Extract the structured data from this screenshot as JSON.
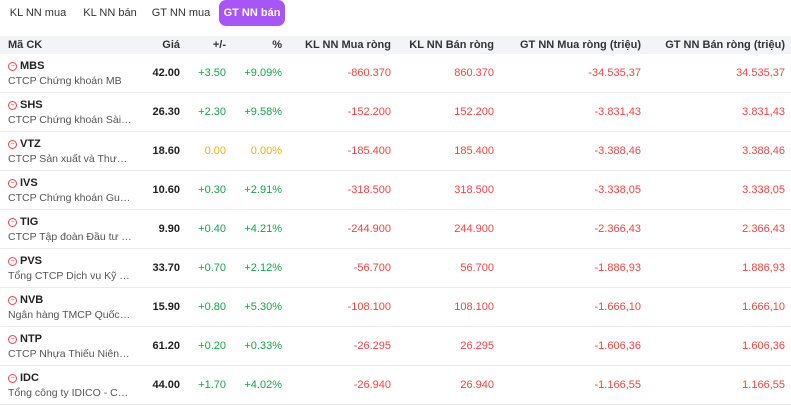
{
  "tabs": [
    {
      "label": "KL NN mua",
      "active": false
    },
    {
      "label": "KL NN bán",
      "active": false
    },
    {
      "label": "GT NN mua",
      "active": false
    },
    {
      "label": "GT NN bán",
      "active": true
    }
  ],
  "columns": {
    "symbol": "Mã CK",
    "price": "Giá",
    "change": "+/-",
    "pct": "%",
    "kl_net_buy": "KL NN Mua ròng",
    "kl_net_sell": "KL NN Bán ròng",
    "gt_net_buy": "GT NN Mua ròng (triệu)",
    "gt_net_sell": "GT NN Bán ròng (triệu)"
  },
  "colors": {
    "accent": "#a855f7",
    "up": "#16a34a",
    "reference": "#eab308",
    "down": "#ef4444"
  },
  "rows": [
    {
      "symbol": "MBS",
      "name": "CTCP Chứng khoán MB",
      "price": "42.00",
      "change": "+3.50",
      "pct": "+9.09%",
      "kl_buy": "-860.370",
      "kl_sell": "860.370",
      "gt_buy": "-34.535,37",
      "gt_sell": "34.535,37",
      "trend": "up"
    },
    {
      "symbol": "SHS",
      "name": "CTCP Chứng khoán Sài Gòn - Hà Nội",
      "price": "26.30",
      "change": "+2.30",
      "pct": "+9.58%",
      "kl_buy": "-152.200",
      "kl_sell": "152.200",
      "gt_buy": "-3.831,43",
      "gt_sell": "3.831,43",
      "trend": "up"
    },
    {
      "symbol": "VTZ",
      "name": "CTCP Sản xuất và Thương mại Nhựa Việt Thành",
      "price": "18.60",
      "change": "0.00",
      "pct": "0.00%",
      "kl_buy": "-185.400",
      "kl_sell": "185.400",
      "gt_buy": "-3.388,46",
      "gt_sell": "3.388,46",
      "trend": "ref"
    },
    {
      "symbol": "IVS",
      "name": "CTCP Chứng khoán Guotai Junan (Việt Nam)",
      "price": "10.60",
      "change": "+0.30",
      "pct": "+2.91%",
      "kl_buy": "-318.500",
      "kl_sell": "318.500",
      "gt_buy": "-3.338,05",
      "gt_sell": "3.338,05",
      "trend": "up"
    },
    {
      "symbol": "TIG",
      "name": "CTCP Tập đoàn Đầu tư Thăng Long",
      "price": "9.90",
      "change": "+0.40",
      "pct": "+4.21%",
      "kl_buy": "-244.900",
      "kl_sell": "244.900",
      "gt_buy": "-2.366,43",
      "gt_sell": "2.366,43",
      "trend": "up"
    },
    {
      "symbol": "PVS",
      "name": "Tổng CTCP Dịch vụ Kỹ thuật Dầu khí Việt Nam",
      "price": "33.70",
      "change": "+0.70",
      "pct": "+2.12%",
      "kl_buy": "-56.700",
      "kl_sell": "56.700",
      "gt_buy": "-1.886,93",
      "gt_sell": "1.886,93",
      "trend": "up"
    },
    {
      "symbol": "NVB",
      "name": "Ngân hàng TMCP Quốc Dân",
      "price": "15.90",
      "change": "+0.80",
      "pct": "+5.30%",
      "kl_buy": "-108.100",
      "kl_sell": "108.100",
      "gt_buy": "-1.666,10",
      "gt_sell": "1.666,10",
      "trend": "up"
    },
    {
      "symbol": "NTP",
      "name": "CTCP Nhựa Thiếu Niên Tiền Phong",
      "price": "61.20",
      "change": "+0.20",
      "pct": "+0.33%",
      "kl_buy": "-26.295",
      "kl_sell": "26.295",
      "gt_buy": "-1.606,36",
      "gt_sell": "1.606,36",
      "trend": "up"
    },
    {
      "symbol": "IDC",
      "name": "Tổng công ty IDICO - CTCP",
      "price": "44.00",
      "change": "+1.70",
      "pct": "+4.02%",
      "kl_buy": "-26.940",
      "kl_sell": "26.940",
      "gt_buy": "-1.166,55",
      "gt_sell": "1.166,55",
      "trend": "up"
    }
  ]
}
